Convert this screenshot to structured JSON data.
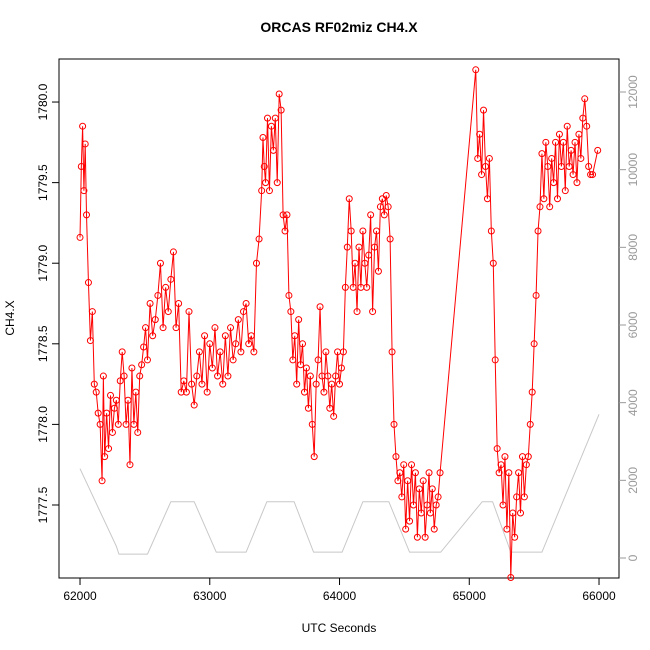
{
  "chart_data": {
    "type": "line",
    "title": "ORCAS RF02miz CH4.X",
    "xlabel": "UTC Seconds",
    "ylabel": "CH4.X",
    "xlim": [
      61838,
      66154
    ],
    "xticks": [
      62000,
      63000,
      64000,
      65000,
      66000
    ],
    "ylim": [
      1777.047,
      1780.267
    ],
    "yticks": [
      1777.5,
      {
        "value": 1778.0,
        "label": "1778.0"
      },
      1778.5,
      {
        "value": 1779.0,
        "label": "1779.0"
      },
      1779.5,
      {
        "value": 1780.0,
        "label": "1780.0"
      }
    ],
    "y2lim": [
      -515,
      12850
    ],
    "y2ticks": [
      0,
      2000,
      4000,
      6000,
      8000,
      10000,
      12000
    ],
    "series": [
      {
        "color": "#ff0000",
        "markers": true,
        "x": [
          62000,
          62010,
          62020,
          62030,
          62040,
          62050,
          62065,
          62080,
          62095,
          62110,
          62125,
          62140,
          62155,
          62170,
          62180,
          62190,
          62205,
          62220,
          62235,
          62250,
          62265,
          62280,
          62295,
          62310,
          62325,
          62340,
          62355,
          62370,
          62385,
          62400,
          62415,
          62430,
          62445,
          62460,
          62475,
          62490,
          62505,
          62520,
          62540,
          62560,
          62580,
          62600,
          62620,
          62640,
          62660,
          62680,
          62700,
          62720,
          62740,
          62760,
          62780,
          62800,
          62820,
          62840,
          62860,
          62880,
          62900,
          62920,
          62940,
          62960,
          62980,
          63000,
          63020,
          63040,
          63060,
          63080,
          63100,
          63120,
          63140,
          63160,
          63180,
          63200,
          63220,
          63240,
          63260,
          63280,
          63300,
          63320,
          63340,
          63360,
          63380,
          63400,
          63410,
          63420,
          63430,
          63445,
          63460,
          63475,
          63490,
          63505,
          63520,
          63535,
          63550,
          63565,
          63580,
          63595,
          63610,
          63625,
          63640,
          63655,
          63670,
          63685,
          63700,
          63715,
          63730,
          63745,
          63760,
          63775,
          63790,
          63805,
          63820,
          63835,
          63850,
          63865,
          63880,
          63895,
          63910,
          63925,
          63940,
          63955,
          63970,
          63985,
          64000,
          64015,
          64030,
          64045,
          64060,
          64075,
          64090,
          64105,
          64120,
          64135,
          64150,
          64165,
          64180,
          64195,
          64210,
          64225,
          64240,
          64255,
          64270,
          64285,
          64300,
          64315,
          64330,
          64345,
          64360,
          64375,
          64390,
          64405,
          64420,
          64435,
          64450,
          64465,
          64480,
          64495,
          64510,
          64525,
          64540,
          64555,
          64570,
          64585,
          64600,
          64615,
          64630,
          64645,
          64660,
          64675,
          64690,
          64700,
          64715,
          64730,
          64745,
          64760,
          64775,
          65050,
          65065,
          65080,
          65095,
          65110,
          65125,
          65140,
          65155,
          65170,
          65185,
          65200,
          65215,
          65230,
          65245,
          65260,
          65275,
          65290,
          65305,
          65320,
          65335,
          65350,
          65365,
          65380,
          65395,
          65410,
          65425,
          65440,
          65455,
          65470,
          65485,
          65500,
          65515,
          65530,
          65545,
          65560,
          65575,
          65590,
          65605,
          65620,
          65635,
          65650,
          65665,
          65680,
          65695,
          65710,
          65725,
          65740,
          65755,
          65770,
          65785,
          65800,
          65815,
          65830,
          65845,
          65860,
          65875,
          65890,
          65905,
          65920,
          65935,
          65950,
          65990
        ],
        "values": [
          1779.16,
          1779.6,
          1779.85,
          1779.45,
          1779.74,
          1779.3,
          1778.88,
          1778.52,
          1778.7,
          1778.25,
          1778.2,
          1778.07,
          1778.0,
          1777.65,
          1778.3,
          1777.8,
          1778.07,
          1777.85,
          1778.18,
          1777.95,
          1778.1,
          1778.15,
          1778.0,
          1778.27,
          1778.45,
          1778.3,
          1778.0,
          1778.15,
          1777.75,
          1778.35,
          1778.0,
          1778.2,
          1777.95,
          1778.3,
          1778.37,
          1778.48,
          1778.6,
          1778.4,
          1778.75,
          1778.55,
          1778.65,
          1778.8,
          1779.0,
          1778.6,
          1778.85,
          1778.7,
          1778.9,
          1779.07,
          1778.6,
          1778.75,
          1778.2,
          1778.27,
          1778.2,
          1778.7,
          1778.25,
          1778.12,
          1778.3,
          1778.45,
          1778.25,
          1778.55,
          1778.2,
          1778.5,
          1778.35,
          1778.6,
          1778.3,
          1778.45,
          1778.25,
          1778.55,
          1778.3,
          1778.6,
          1778.4,
          1778.5,
          1778.65,
          1778.45,
          1778.7,
          1778.75,
          1778.5,
          1778.55,
          1778.45,
          1779.0,
          1779.15,
          1779.45,
          1779.78,
          1779.6,
          1779.5,
          1779.9,
          1779.45,
          1779.85,
          1779.7,
          1779.9,
          1779.5,
          1780.05,
          1779.95,
          1779.3,
          1779.2,
          1779.3,
          1778.8,
          1778.7,
          1778.4,
          1778.55,
          1778.25,
          1778.65,
          1778.37,
          1778.5,
          1778.2,
          1778.35,
          1778.1,
          1778.3,
          1778.0,
          1777.8,
          1778.25,
          1778.4,
          1778.73,
          1778.3,
          1778.2,
          1778.45,
          1778.3,
          1778.1,
          1778.25,
          1778.05,
          1778.3,
          1778.45,
          1778.25,
          1778.35,
          1778.45,
          1778.85,
          1779.1,
          1779.4,
          1779.2,
          1778.85,
          1779.0,
          1778.7,
          1779.1,
          1778.85,
          1779.2,
          1779.0,
          1778.85,
          1779.05,
          1779.3,
          1778.7,
          1779.1,
          1779.2,
          1778.95,
          1779.35,
          1779.4,
          1779.3,
          1779.42,
          1779.35,
          1779.15,
          1778.45,
          1778.0,
          1777.8,
          1777.65,
          1777.7,
          1777.55,
          1777.75,
          1777.35,
          1777.65,
          1777.4,
          1777.75,
          1777.5,
          1777.7,
          1777.3,
          1777.6,
          1777.45,
          1777.65,
          1777.3,
          1777.5,
          1777.7,
          1777.45,
          1777.6,
          1777.35,
          1777.5,
          1777.55,
          1777.7,
          1780.2,
          1779.65,
          1779.8,
          1779.55,
          1779.95,
          1779.6,
          1779.4,
          1779.65,
          1779.2,
          1779.0,
          1778.4,
          1777.85,
          1777.7,
          1777.75,
          1777.5,
          1777.8,
          1777.35,
          1777.7,
          1777.05,
          1777.45,
          1777.3,
          1777.55,
          1777.7,
          1777.45,
          1777.8,
          1777.55,
          1777.75,
          1777.8,
          1778.0,
          1778.2,
          1778.5,
          1778.8,
          1779.2,
          1779.35,
          1779.68,
          1779.4,
          1779.75,
          1779.6,
          1779.35,
          1779.65,
          1779.5,
          1779.75,
          1779.4,
          1779.8,
          1779.6,
          1779.75,
          1779.45,
          1779.85,
          1779.6,
          1779.7,
          1779.55,
          1779.75,
          1779.5,
          1779.8,
          1779.65,
          1779.9,
          1780.02,
          1779.85,
          1779.6,
          1779.55,
          1779.55,
          1779.7
        ]
      },
      {
        "color": "#c8c8c8",
        "axis": "y2",
        "markers": false,
        "x": [
          62000,
          62280,
          62300,
          62520,
          62700,
          62880,
          63050,
          63280,
          63440,
          63650,
          63800,
          64020,
          64180,
          64380,
          64540,
          64780,
          65100,
          65180,
          65320,
          65560,
          66000
        ],
        "values": [
          2300,
          300,
          100,
          100,
          1450,
          1450,
          150,
          150,
          1450,
          1450,
          150,
          150,
          1450,
          1450,
          150,
          150,
          1450,
          1450,
          150,
          150,
          3700
        ]
      }
    ]
  }
}
